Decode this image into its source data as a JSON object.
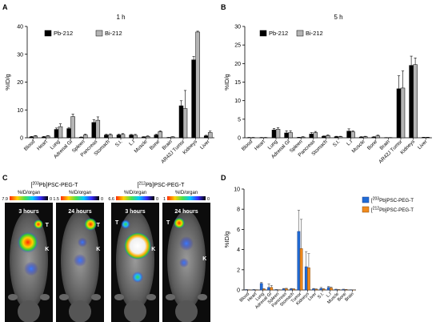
{
  "panel_labels": {
    "A": "A",
    "B": "B",
    "C": "C",
    "D": "D"
  },
  "colors": {
    "pb": "#000000",
    "bi": "#b4b4b4",
    "d_203": "#1f6bd6",
    "d_212": "#f08a1c",
    "axis": "#000000"
  },
  "chart_data": [
    {
      "id": "A",
      "type": "bar",
      "title": "1 h",
      "ylabel": "%ID/g",
      "ylim": [
        0,
        40
      ],
      "yticks": [
        0,
        10,
        20,
        30,
        40
      ],
      "categories": [
        "Blood",
        "Heart",
        "Lung",
        "Adrenal Gl",
        "Spleen",
        "Pancreas",
        "Stomach",
        "S.I.",
        "L.I",
        "Muscle",
        "Bone",
        "Brain",
        "AR42J Tumor",
        "Kidneys",
        "Liver"
      ],
      "series": [
        {
          "name": "Pb-212",
          "values": [
            0.3,
            0.3,
            3.0,
            3.3,
            0.2,
            5.5,
            1.0,
            1.0,
            1.0,
            0.3,
            1.0,
            0.1,
            11.5,
            28.0,
            0.7
          ],
          "errors": [
            0.2,
            0.2,
            0.5,
            0.4,
            0.1,
            1.0,
            0.3,
            0.3,
            0.2,
            0.1,
            0.3,
            0.05,
            1.8,
            1.2,
            0.2
          ]
        },
        {
          "name": "Bi-212",
          "values": [
            0.6,
            0.6,
            4.0,
            7.6,
            1.0,
            6.3,
            1.1,
            1.2,
            0.9,
            0.5,
            2.2,
            0.3,
            10.5,
            38.0,
            1.9
          ],
          "errors": [
            0.2,
            0.2,
            1.0,
            0.9,
            0.3,
            1.2,
            0.3,
            0.3,
            0.3,
            0.2,
            0.3,
            0.1,
            6.5,
            0.3,
            0.5
          ]
        }
      ],
      "legend": "top-left"
    },
    {
      "id": "B",
      "type": "bar",
      "title": "5 h",
      "ylabel": "%ID/g",
      "ylim": [
        0,
        30
      ],
      "yticks": [
        0,
        5,
        10,
        15,
        20,
        25,
        30
      ],
      "categories": [
        "Blood",
        "Heart",
        "Lung",
        "Adrenal Gl",
        "Spleen",
        "Pancreas",
        "Stomach",
        "S.I.",
        "L.I",
        "Muscle",
        "Bone",
        "Brain",
        "AR42J Tumor",
        "Kidneys",
        "Liver"
      ],
      "series": [
        {
          "name": "Pb-212",
          "values": [
            0.05,
            0.05,
            2.1,
            1.3,
            0.1,
            1.0,
            0.4,
            0.3,
            1.8,
            0.2,
            0.2,
            0.05,
            13.2,
            19.5,
            0.1
          ],
          "errors": [
            0.05,
            0.05,
            0.4,
            0.6,
            0.05,
            0.4,
            0.1,
            0.1,
            0.6,
            0.1,
            0.1,
            0.02,
            3.5,
            2.5,
            0.05
          ]
        },
        {
          "name": "Bi-212",
          "values": [
            0.05,
            0.05,
            2.3,
            1.4,
            0.2,
            1.4,
            0.6,
            0.3,
            1.6,
            0.3,
            0.5,
            0.05,
            13.4,
            19.7,
            0.1
          ],
          "errors": [
            0.05,
            0.05,
            0.4,
            0.5,
            0.1,
            0.3,
            0.2,
            0.1,
            0.3,
            0.1,
            0.2,
            0.02,
            4.6,
            1.8,
            0.05
          ]
        }
      ],
      "legend": "top-left"
    },
    {
      "id": "D",
      "type": "bar",
      "title": "",
      "ylabel": "%ID/g",
      "ylim": [
        0,
        10
      ],
      "yticks": [
        0,
        2,
        4,
        6,
        8,
        10
      ],
      "categories": [
        "Blood",
        "Heart",
        "Lung",
        "Adrenal Gl",
        "Spleen",
        "Pancreas",
        "Stomach",
        "Tumor",
        "Kidneys",
        "Liver",
        "S.I.",
        "L.I",
        "Muscle",
        "Bone",
        "Brain"
      ],
      "series": [
        {
          "name": "[203Pb]PSC-PEG-T",
          "sup": "203",
          "rest": "Pb]PSC-PEG-T",
          "values": [
            0.03,
            0.03,
            0.65,
            0.25,
            0.03,
            0.1,
            0.1,
            5.8,
            2.3,
            0.1,
            0.15,
            0.25,
            0.05,
            0.05,
            0.02
          ],
          "errors": [
            0.02,
            0.02,
            0.1,
            0.35,
            0.02,
            0.05,
            0.05,
            2.1,
            1.5,
            0.05,
            0.1,
            0.1,
            0.03,
            0.03,
            0.01
          ]
        },
        {
          "name": "[212Pb]PSC-PEG-T",
          "sup": "212",
          "rest": "Pb]PSC-PEG-T",
          "values": [
            0.02,
            0.02,
            0.08,
            0.25,
            0.02,
            0.12,
            0.08,
            4.1,
            2.2,
            0.07,
            0.08,
            0.2,
            0.03,
            0.04,
            0.01
          ],
          "errors": [
            0.01,
            0.01,
            0.05,
            0.2,
            0.01,
            0.05,
            0.04,
            2.9,
            1.4,
            0.04,
            0.05,
            0.1,
            0.02,
            0.02,
            0.01
          ]
        }
      ],
      "legend": "top-right"
    }
  ],
  "panel_c": {
    "groups": [
      {
        "title_sup": "203",
        "title_rest": "Pb]PSC-PEG-T",
        "images": [
          {
            "unit": "%ID/organ",
            "max": "7.9",
            "min": "0",
            "time": "3 hours",
            "markers": [
              "T",
              "K"
            ]
          },
          {
            "unit": "%ID/organ",
            "max": "1.5",
            "min": "0",
            "time": "24 hours",
            "markers": [
              "T",
              "K"
            ]
          }
        ]
      },
      {
        "title_sup": "212",
        "title_rest": "Pb]PSC-PEG-T",
        "images": [
          {
            "unit": "%ID/organ",
            "max": "6.6",
            "min": "0",
            "time": "3 hours",
            "markers": [
              "T",
              "K"
            ]
          },
          {
            "unit": "%ID/organ",
            "max": "1",
            "min": "0",
            "time": "24 hours",
            "markers": [
              "T",
              "K"
            ]
          }
        ]
      }
    ]
  }
}
